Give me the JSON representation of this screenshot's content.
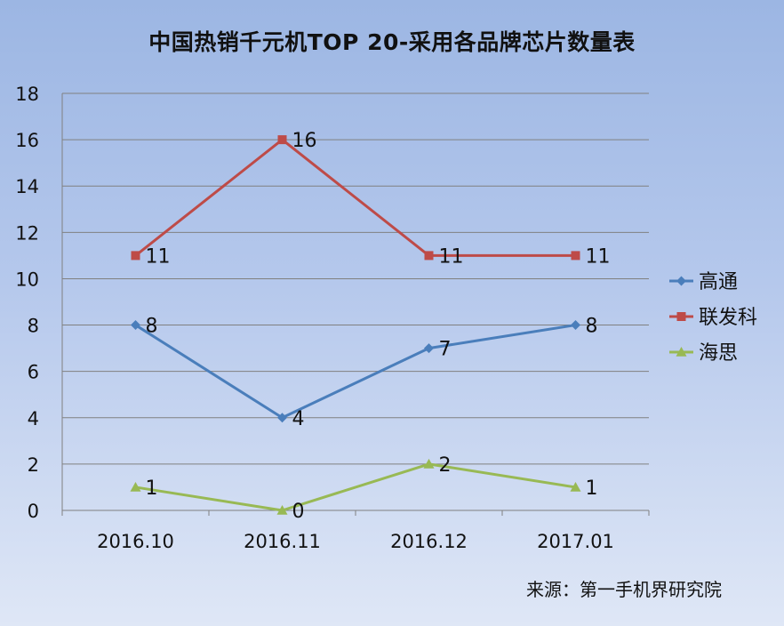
{
  "title": "中国热销千元机TOP 20-采用各品牌芯片数量表",
  "source": "来源：第一手机界研究院",
  "colors": {
    "gridline": "#808080",
    "axis": "#808080"
  },
  "chart_data": {
    "type": "line",
    "title": "中国热销千元机TOP 20-采用各品牌芯片数量表",
    "categories": [
      "2016.10",
      "2016.11",
      "2016.12",
      "2017.01"
    ],
    "ylim": [
      0,
      18
    ],
    "yticks": [
      0,
      2,
      4,
      6,
      8,
      10,
      12,
      14,
      16,
      18
    ],
    "grid": true,
    "legend": "right",
    "series": [
      {
        "name": "高通",
        "values": [
          8,
          4,
          7,
          8
        ],
        "color": "#4a7ebb",
        "marker": "diamond"
      },
      {
        "name": "联发科",
        "values": [
          11,
          16,
          11,
          11
        ],
        "color": "#be4b48",
        "marker": "square"
      },
      {
        "name": "海思",
        "values": [
          1,
          0,
          2,
          1
        ],
        "color": "#98b954",
        "marker": "triangle"
      }
    ]
  }
}
